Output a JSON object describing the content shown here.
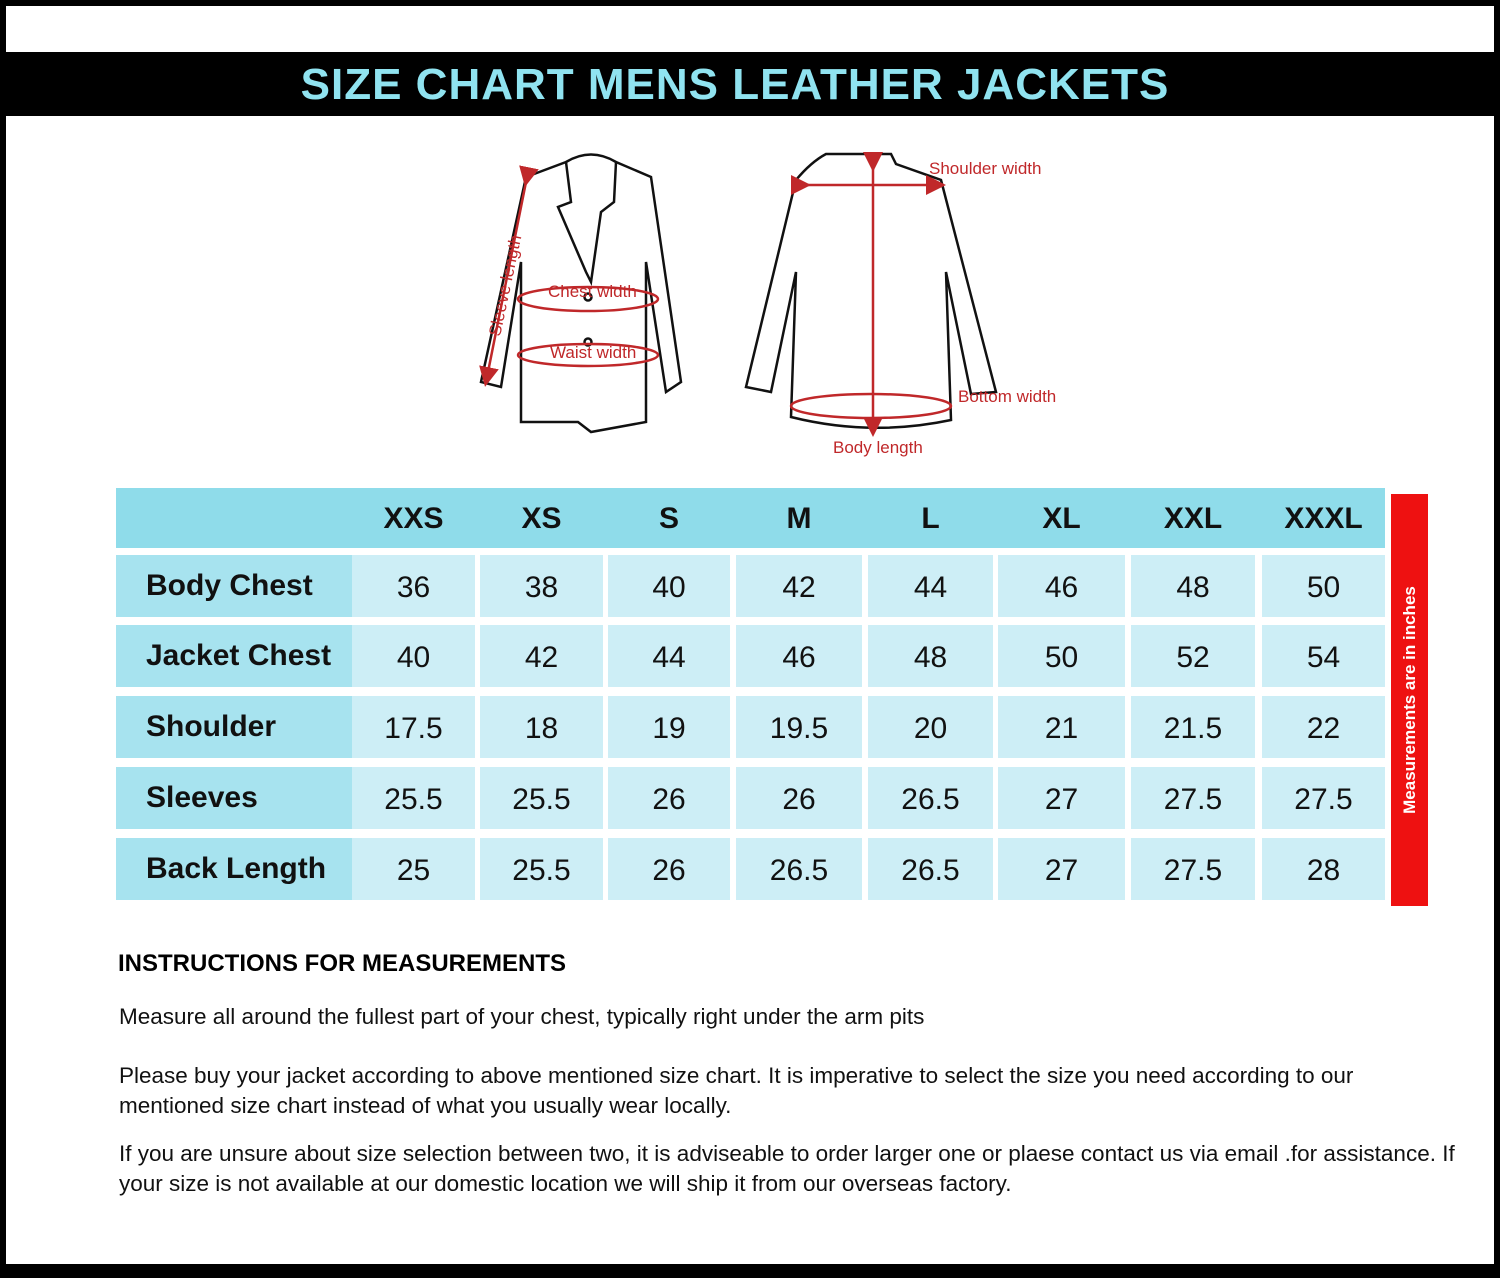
{
  "title": "SIZE CHART MENS LEATHER JACKETS",
  "diagram": {
    "labels": {
      "sleeve": "Sleeve length",
      "chest": "Chest width",
      "waist": "Waist width",
      "shoulder": "Shoulder width",
      "bottom": "Bottom width",
      "body": "Body length"
    },
    "accent": "#c0282a"
  },
  "table": {
    "sizes": [
      "XXS",
      "XS",
      "S",
      "M",
      "L",
      "XL",
      "XXL",
      "XXXL"
    ],
    "rows": [
      {
        "label": "Body Chest",
        "values": [
          "36",
          "38",
          "40",
          "42",
          "44",
          "46",
          "48",
          "50"
        ]
      },
      {
        "label": "Jacket Chest",
        "values": [
          "40",
          "42",
          "44",
          "46",
          "48",
          "50",
          "52",
          "54"
        ]
      },
      {
        "label": "Shoulder",
        "values": [
          "17.5",
          "18",
          "19",
          "19.5",
          "20",
          "21",
          "21.5",
          "22"
        ]
      },
      {
        "label": "Sleeves",
        "values": [
          "25.5",
          "25.5",
          "26",
          "26",
          "26.5",
          "27",
          "27.5",
          "27.5"
        ]
      },
      {
        "label": "Back Length",
        "values": [
          "25",
          "25.5",
          "26",
          "26.5",
          "26.5",
          "27",
          "27.5",
          "28"
        ]
      }
    ],
    "side_note": "Measurements  are in inches",
    "colors": {
      "header": "#8fdcea",
      "label": "#a7e3ef",
      "cell": "#cdeef6",
      "side": "#ee1111"
    }
  },
  "instructions": {
    "heading": "INSTRUCTIONS FOR MEASUREMENTS",
    "p1": "Measure all around the fullest part of your chest, typically right under the arm pits",
    "p2": "Please buy your jacket according to above mentioned size chart. It is imperative to select the size you need according to our mentioned size chart instead of what you  usually wear locally.",
    "p3": "If you are unsure about size selection between two, it is adviseable to order larger one or plaese contact us via  email .for assistance. If your size is not available at our domestic location we will ship it from our overseas factory."
  }
}
